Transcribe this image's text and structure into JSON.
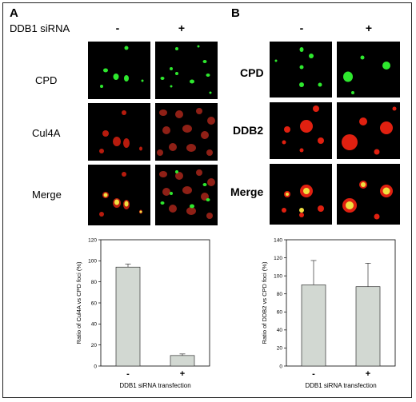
{
  "panels": {
    "a": {
      "letter": "A",
      "top_label": "DDB1 siRNA",
      "minus": "-",
      "plus": "+",
      "rows": [
        "CPD",
        "Cul4A",
        "Merge"
      ]
    },
    "b": {
      "letter": "B",
      "minus": "-",
      "plus": "+",
      "rows": [
        "CPD",
        "DDB2",
        "Merge"
      ]
    }
  },
  "colors": {
    "bar_fill": "#d2d8d2",
    "green": "#2ee82e",
    "red": "#e02010",
    "yellow": "#f0e040"
  },
  "chart_data": [
    {
      "type": "bar",
      "categories": [
        "-",
        "+"
      ],
      "values": [
        94,
        10
      ],
      "errors": [
        3,
        1.5
      ],
      "ylim": [
        0,
        120
      ],
      "yticks": [
        0,
        20,
        40,
        60,
        80,
        100,
        120
      ],
      "ylabel": "Ratio of Cul4A vs CPD foci (%)",
      "xlabel": "DDB1 siRNA transfection",
      "grid": false
    },
    {
      "type": "bar",
      "categories": [
        "-",
        "+"
      ],
      "values": [
        90,
        88
      ],
      "errors": [
        27,
        26
      ],
      "ylim": [
        0,
        140
      ],
      "yticks": [
        0,
        20,
        40,
        60,
        80,
        100,
        120,
        140
      ],
      "ylabel": "Ratio of DDB2 vs CPD foci (%)",
      "xlabel": "DDB1 siRNA transfection",
      "grid": false
    }
  ]
}
